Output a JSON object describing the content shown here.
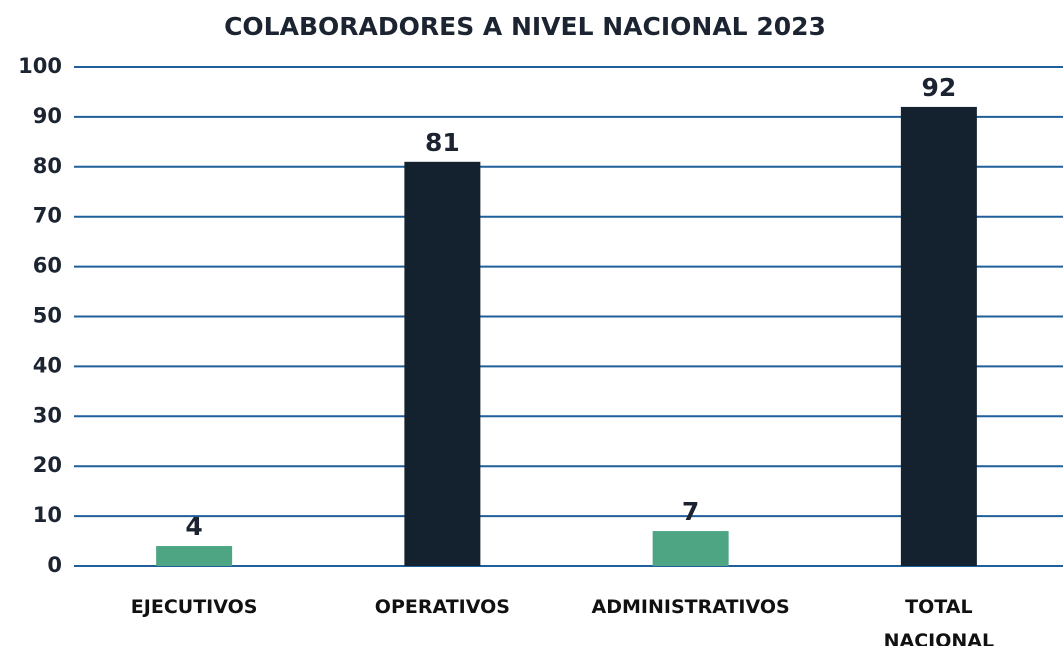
{
  "chart_data": {
    "type": "bar",
    "title": "COLABORADORES A NIVEL NACIONAL 2023",
    "categories": [
      "EJECUTIVOS",
      "OPERATIVOS",
      "ADMINISTRATIVOS",
      "TOTAL NACIONAL"
    ],
    "values": [
      4,
      81,
      7,
      92
    ],
    "colors": [
      "#4ea583",
      "#14222f",
      "#4ea583",
      "#14222f"
    ],
    "ylim": [
      0,
      100
    ],
    "yticks": [
      0,
      10,
      20,
      30,
      40,
      50,
      60,
      70,
      80,
      90,
      100
    ],
    "grid": true
  }
}
